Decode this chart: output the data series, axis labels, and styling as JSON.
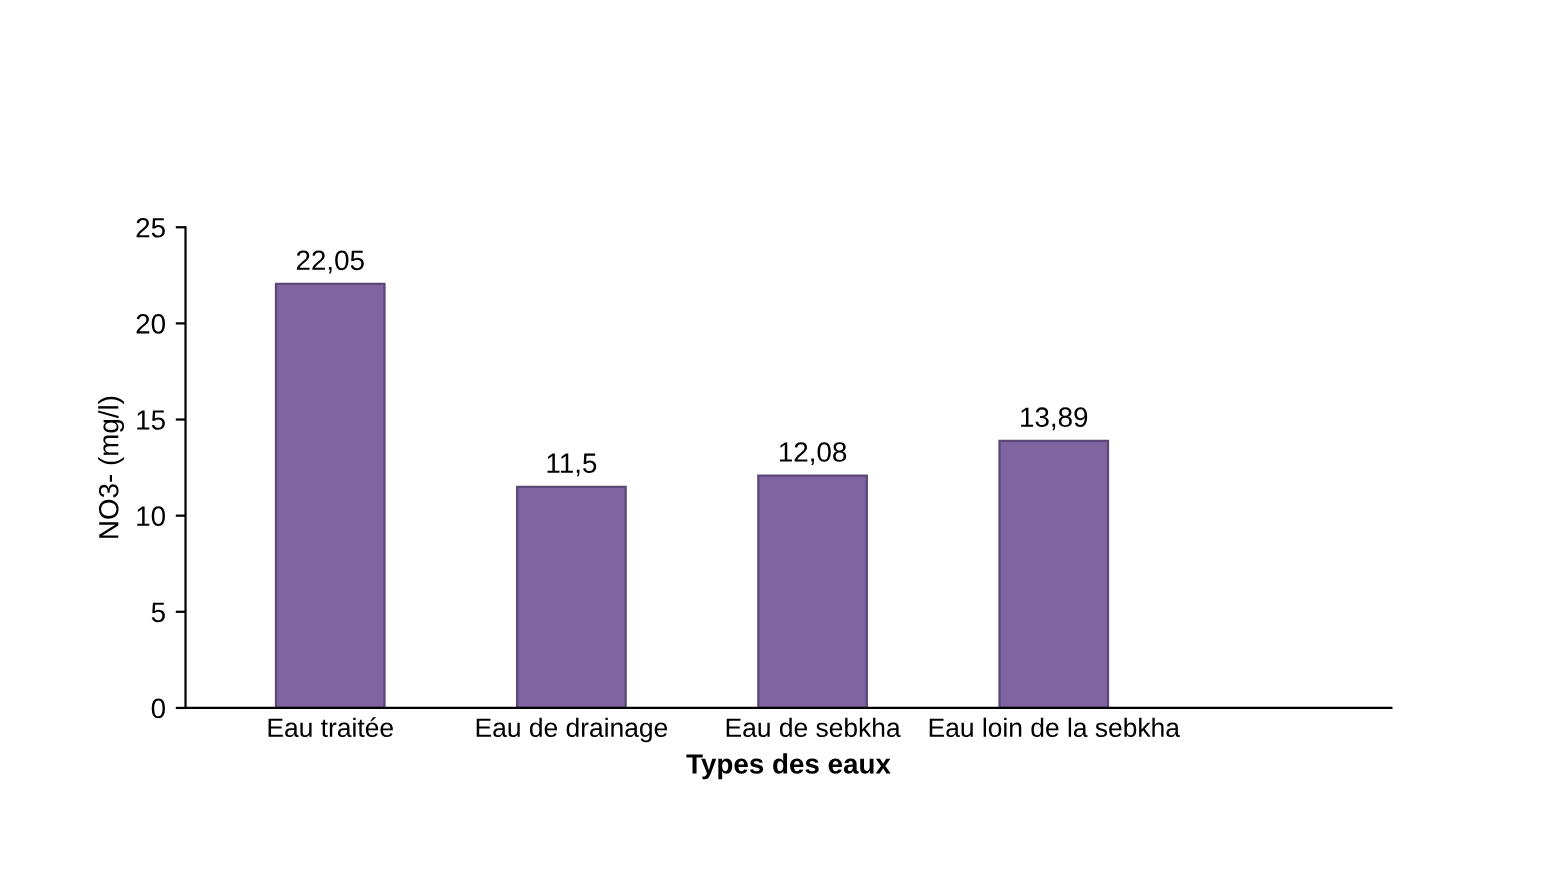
{
  "chart_data": {
    "type": "bar",
    "xlabel": "Types des eaux",
    "ylabel": "NO3- (mg/l)",
    "categories": [
      "Eau traitée",
      "Eau de drainage",
      "Eau de sebkha",
      "Eau loin de la sebkha"
    ],
    "values": [
      22.05,
      11.5,
      12.08,
      13.89
    ],
    "value_labels": [
      "22,05",
      "11,5",
      "12,08",
      "13,89"
    ],
    "color": "#8064a2",
    "ylim": [
      0,
      25
    ],
    "yticks": [
      0,
      5,
      10,
      15,
      20,
      25
    ],
    "grid": false,
    "legend": false
  }
}
